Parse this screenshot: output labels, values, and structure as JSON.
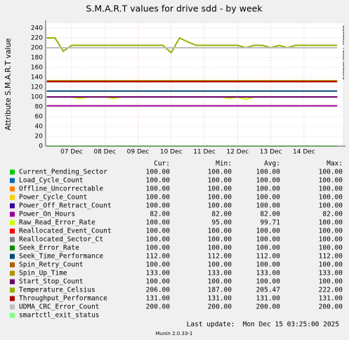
{
  "chart_data": {
    "type": "line",
    "title": "S.M.A.R.T values for drive sdd - by week",
    "y_label": "Attribute S.M.A.R.T value",
    "watermark": "RRDTOOL / TOBI OETIKER",
    "categories": [
      null,
      null,
      null,
      "07 Dec",
      null,
      null,
      null,
      "08 Dec",
      null,
      null,
      null,
      "09 Dec",
      null,
      null,
      null,
      "10 Dec",
      null,
      null,
      null,
      "11 Dec",
      null,
      null,
      null,
      "12 Dec",
      null,
      null,
      null,
      "13 Dec",
      null,
      null,
      null,
      "14 Dec",
      null,
      null,
      null,
      null
    ],
    "ylim": [
      0,
      250
    ],
    "yticks": [
      0,
      20,
      40,
      60,
      80,
      100,
      120,
      140,
      160,
      180,
      200,
      220,
      240
    ],
    "grid": true,
    "stat_headers": [
      "Cur:",
      "Min:",
      "Avg:",
      "Max:"
    ],
    "series": [
      {
        "name": "Current_Pending_Sector",
        "color": "#00cc00",
        "stats": [
          "100.00",
          "100.00",
          "100.00",
          "100.00"
        ],
        "values": [
          100,
          100,
          100,
          100,
          100,
          100,
          100,
          100,
          100,
          100,
          100,
          100,
          100,
          100,
          100,
          100,
          100,
          100,
          100,
          100,
          100,
          100,
          100,
          100,
          100,
          100,
          100,
          100,
          100,
          100,
          100,
          100,
          100,
          100,
          100,
          100
        ]
      },
      {
        "name": "Load_Cycle_Count",
        "color": "#0066b3",
        "stats": [
          "100.00",
          "100.00",
          "100.00",
          "100.00"
        ],
        "values": [
          100,
          100,
          100,
          100,
          100,
          100,
          100,
          100,
          100,
          100,
          100,
          100,
          100,
          100,
          100,
          100,
          100,
          100,
          100,
          100,
          100,
          100,
          100,
          100,
          100,
          100,
          100,
          100,
          100,
          100,
          100,
          100,
          100,
          100,
          100,
          100
        ]
      },
      {
        "name": "Offline_Uncorrectable",
        "color": "#ff8000",
        "stats": [
          "100.00",
          "100.00",
          "100.00",
          "100.00"
        ],
        "values": [
          100,
          100,
          100,
          100,
          100,
          100,
          100,
          100,
          100,
          100,
          100,
          100,
          100,
          100,
          100,
          100,
          100,
          100,
          100,
          100,
          100,
          100,
          100,
          100,
          100,
          100,
          100,
          100,
          100,
          100,
          100,
          100,
          100,
          100,
          100,
          100
        ]
      },
      {
        "name": "Power_Cycle_Count",
        "color": "#ffcc00",
        "stats": [
          "100.00",
          "100.00",
          "100.00",
          "100.00"
        ],
        "values": [
          100,
          100,
          100,
          100,
          100,
          100,
          100,
          100,
          100,
          100,
          100,
          100,
          100,
          100,
          100,
          100,
          100,
          100,
          100,
          100,
          100,
          100,
          100,
          100,
          100,
          100,
          100,
          100,
          100,
          100,
          100,
          100,
          100,
          100,
          100,
          100
        ]
      },
      {
        "name": "Power_Off_Retract_Count",
        "color": "#330099",
        "stats": [
          "100.00",
          "100.00",
          "100.00",
          "100.00"
        ],
        "values": [
          100,
          100,
          100,
          100,
          100,
          100,
          100,
          100,
          100,
          100,
          100,
          100,
          100,
          100,
          100,
          100,
          100,
          100,
          100,
          100,
          100,
          100,
          100,
          100,
          100,
          100,
          100,
          100,
          100,
          100,
          100,
          100,
          100,
          100,
          100,
          100
        ]
      },
      {
        "name": "Power_On_Hours",
        "color": "#990099",
        "stats": [
          "82.00",
          "82.00",
          "82.00",
          "82.00"
        ],
        "values": [
          82,
          82,
          82,
          82,
          82,
          82,
          82,
          82,
          82,
          82,
          82,
          82,
          82,
          82,
          82,
          82,
          82,
          82,
          82,
          82,
          82,
          82,
          82,
          82,
          82,
          82,
          82,
          82,
          82,
          82,
          82,
          82,
          82,
          82,
          82,
          82
        ]
      },
      {
        "name": "Raw_Read_Error_Rate",
        "color": "#ccff00",
        "stats": [
          "100.00",
          "95.00",
          "99.71",
          "100.00"
        ],
        "values": [
          100,
          100,
          100,
          100,
          97,
          100,
          100,
          100,
          97,
          100,
          100,
          100,
          100,
          100,
          100,
          100,
          100,
          100,
          100,
          100,
          100,
          100,
          97,
          100,
          95,
          100,
          100,
          100,
          100,
          100,
          100,
          100,
          100,
          100,
          100,
          100
        ]
      },
      {
        "name": "Reallocated_Event_Count",
        "color": "#ff0000",
        "stats": [
          "100.00",
          "100.00",
          "100.00",
          "100.00"
        ],
        "values": [
          100,
          100,
          100,
          100,
          100,
          100,
          100,
          100,
          100,
          100,
          100,
          100,
          100,
          100,
          100,
          100,
          100,
          100,
          100,
          100,
          100,
          100,
          100,
          100,
          100,
          100,
          100,
          100,
          100,
          100,
          100,
          100,
          100,
          100,
          100,
          100
        ]
      },
      {
        "name": "Reallocated_Sector_Ct",
        "color": "#808080",
        "stats": [
          "100.00",
          "100.00",
          "100.00",
          "100.00"
        ],
        "values": [
          100,
          100,
          100,
          100,
          100,
          100,
          100,
          100,
          100,
          100,
          100,
          100,
          100,
          100,
          100,
          100,
          100,
          100,
          100,
          100,
          100,
          100,
          100,
          100,
          100,
          100,
          100,
          100,
          100,
          100,
          100,
          100,
          100,
          100,
          100,
          100
        ]
      },
      {
        "name": "Seek_Error_Rate",
        "color": "#008f00",
        "stats": [
          "100.00",
          "100.00",
          "100.00",
          "100.00"
        ],
        "values": [
          100,
          100,
          100,
          100,
          100,
          100,
          100,
          100,
          100,
          100,
          100,
          100,
          100,
          100,
          100,
          100,
          100,
          100,
          100,
          100,
          100,
          100,
          100,
          100,
          100,
          100,
          100,
          100,
          100,
          100,
          100,
          100,
          100,
          100,
          100,
          100
        ]
      },
      {
        "name": "Seek_Time_Performance",
        "color": "#00487d",
        "stats": [
          "112.00",
          "112.00",
          "112.00",
          "112.00"
        ],
        "values": [
          112,
          112,
          112,
          112,
          112,
          112,
          112,
          112,
          112,
          112,
          112,
          112,
          112,
          112,
          112,
          112,
          112,
          112,
          112,
          112,
          112,
          112,
          112,
          112,
          112,
          112,
          112,
          112,
          112,
          112,
          112,
          112,
          112,
          112,
          112,
          112
        ]
      },
      {
        "name": "Spin_Retry_Count",
        "color": "#b35a00",
        "stats": [
          "100.00",
          "100.00",
          "100.00",
          "100.00"
        ],
        "values": [
          100,
          100,
          100,
          100,
          100,
          100,
          100,
          100,
          100,
          100,
          100,
          100,
          100,
          100,
          100,
          100,
          100,
          100,
          100,
          100,
          100,
          100,
          100,
          100,
          100,
          100,
          100,
          100,
          100,
          100,
          100,
          100,
          100,
          100,
          100,
          100
        ]
      },
      {
        "name": "Spin_Up_Time",
        "color": "#b38f00",
        "stats": [
          "133.00",
          "133.00",
          "133.00",
          "133.00"
        ],
        "values": [
          133,
          133,
          133,
          133,
          133,
          133,
          133,
          133,
          133,
          133,
          133,
          133,
          133,
          133,
          133,
          133,
          133,
          133,
          133,
          133,
          133,
          133,
          133,
          133,
          133,
          133,
          133,
          133,
          133,
          133,
          133,
          133,
          133,
          133,
          133,
          133
        ]
      },
      {
        "name": "Start_Stop_Count",
        "color": "#6b006b",
        "stats": [
          "100.00",
          "100.00",
          "100.00",
          "100.00"
        ],
        "values": [
          100,
          100,
          100,
          100,
          100,
          100,
          100,
          100,
          100,
          100,
          100,
          100,
          100,
          100,
          100,
          100,
          100,
          100,
          100,
          100,
          100,
          100,
          100,
          100,
          100,
          100,
          100,
          100,
          100,
          100,
          100,
          100,
          100,
          100,
          100,
          100
        ]
      },
      {
        "name": "Temperature_Celsius",
        "color": "#8fb300",
        "stats": [
          "206.00",
          "187.00",
          "205.47",
          "222.00"
        ],
        "values": [
          220,
          220,
          193,
          205,
          205,
          205,
          205,
          205,
          205,
          205,
          205,
          205,
          205,
          205,
          205,
          190,
          220,
          212,
          205,
          205,
          205,
          205,
          205,
          205,
          200,
          205,
          205,
          200,
          205,
          200,
          205,
          205,
          205,
          205,
          205,
          205
        ]
      },
      {
        "name": "Throughput_Performance",
        "color": "#b30000",
        "stats": [
          "131.00",
          "131.00",
          "131.00",
          "131.00"
        ],
        "values": [
          131,
          131,
          131,
          131,
          131,
          131,
          131,
          131,
          131,
          131,
          131,
          131,
          131,
          131,
          131,
          131,
          131,
          131,
          131,
          131,
          131,
          131,
          131,
          131,
          131,
          131,
          131,
          131,
          131,
          131,
          131,
          131,
          131,
          131,
          131,
          131
        ]
      },
      {
        "name": "UDMA_CRC_Error_Count",
        "color": "#bebebe",
        "stats": [
          "200.00",
          "200.00",
          "200.00",
          "200.00"
        ],
        "values": [
          200,
          200,
          200,
          200,
          200,
          200,
          200,
          200,
          200,
          200,
          200,
          200,
          200,
          200,
          200,
          200,
          200,
          200,
          200,
          200,
          200,
          200,
          200,
          200,
          200,
          200,
          200,
          200,
          200,
          200,
          200,
          200,
          200,
          200,
          200,
          200
        ]
      },
      {
        "name": "smartctl_exit_status",
        "color": "#80ff80",
        "values": [
          0,
          0,
          0,
          0,
          0,
          0,
          0,
          0,
          0,
          0,
          0,
          0,
          0,
          0,
          0,
          0,
          0,
          0,
          0,
          0,
          0,
          0,
          0,
          0,
          0,
          0,
          0,
          0,
          0,
          0,
          0,
          0,
          0,
          0,
          0,
          0
        ]
      }
    ],
    "last_update": "Last update:  Mon Dec 15 03:25:00 2025",
    "footer": "Munin 2.0.33-1"
  }
}
